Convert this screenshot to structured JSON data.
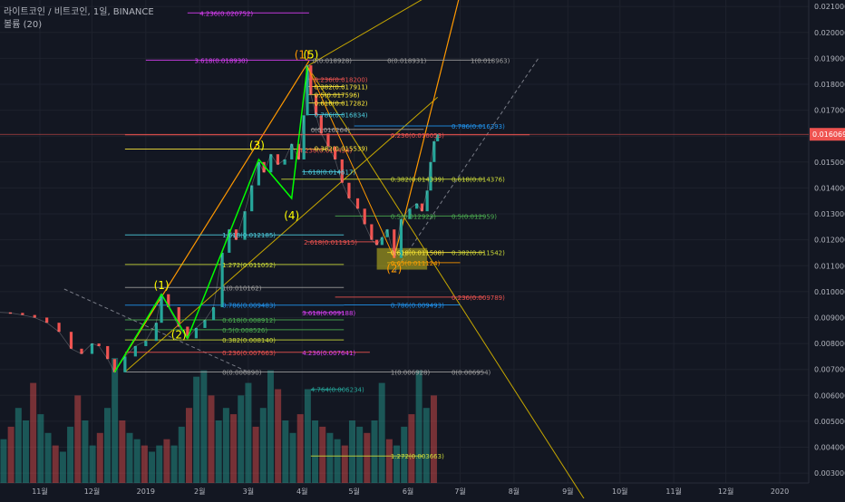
{
  "header": {
    "symbol": "라이트코인 / 비트코인, 1일, BINANCE",
    "indicator": "볼륨 (20)"
  },
  "colors": {
    "bg": "#131722",
    "grid": "#1e222d",
    "up": "#26a69a",
    "down": "#ef5350",
    "axis_text": "#b2b5be",
    "price_badge": "#ef5350",
    "channel": "#ff9800",
    "wave": "#00ff00",
    "sub_wave": "#ffff00",
    "wave_label_main": "#ffff00",
    "wave_label_sub": "#ff9800"
  },
  "chart_data": {
    "type": "candlestick",
    "title": "",
    "xlabel": "",
    "ylabel": "",
    "ylim": [
      0.00262,
      0.02125
    ],
    "grid": true,
    "last_price": "0.016069",
    "y_ticks": [
      "0.021000",
      "0.020000",
      "0.019000",
      "0.018000",
      "0.017000",
      "0.016000",
      "0.015000",
      "0.014000",
      "0.013000",
      "0.012000",
      "0.011000",
      "0.010000",
      "0.009000",
      "0.008000",
      "0.007000",
      "0.006000",
      "0.005000",
      "0.004000",
      "0.003000"
    ],
    "x_ticks": [
      {
        "label": "11월",
        "x": "2018-11-01"
      },
      {
        "label": "12월",
        "x": "2018-12-01"
      },
      {
        "label": "2019",
        "x": "2019-01-01"
      },
      {
        "label": "2월",
        "x": "2019-02-01"
      },
      {
        "label": "3월",
        "x": "2019-03-01"
      },
      {
        "label": "4월",
        "x": "2019-04-01"
      },
      {
        "label": "5월",
        "x": "2019-05-01"
      },
      {
        "label": "6월",
        "x": "2019-06-01"
      },
      {
        "label": "7월",
        "x": "2019-07-01"
      },
      {
        "label": "8월",
        "x": "2019-08-01"
      },
      {
        "label": "9월",
        "x": "2019-09-01"
      },
      {
        "label": "10월",
        "x": "2019-10-01"
      },
      {
        "label": "11월",
        "x": "2019-11-01"
      },
      {
        "label": "12월",
        "x": "2019-12-01"
      },
      {
        "label": "2020",
        "x": "2020-01-01"
      }
    ],
    "price_path": [
      [
        "2018-10-09",
        0.0092
      ],
      [
        "2018-10-15",
        0.00918
      ],
      [
        "2018-10-22",
        0.0091
      ],
      [
        "2018-10-29",
        0.009
      ],
      [
        "2018-11-05",
        0.0088
      ],
      [
        "2018-11-12",
        0.00845
      ],
      [
        "2018-11-19",
        0.0078
      ],
      [
        "2018-11-25",
        0.0076
      ],
      [
        "2018-12-01",
        0.008
      ],
      [
        "2018-12-05",
        0.0079
      ],
      [
        "2018-12-10",
        0.0074
      ],
      [
        "2018-12-14",
        0.00689
      ],
      [
        "2018-12-20",
        0.0075
      ],
      [
        "2018-12-26",
        0.0079
      ],
      [
        "2019-01-01",
        0.0081
      ],
      [
        "2019-01-07",
        0.0088
      ],
      [
        "2019-01-10",
        0.0099
      ],
      [
        "2019-01-14",
        0.0094
      ],
      [
        "2019-01-20",
        0.00865
      ],
      [
        "2019-01-25",
        0.0082
      ],
      [
        "2019-01-30",
        0.0086
      ],
      [
        "2019-02-04",
        0.0089
      ],
      [
        "2019-02-09",
        0.0094
      ],
      [
        "2019-02-14",
        0.0115
      ],
      [
        "2019-02-18",
        0.0124
      ],
      [
        "2019-02-22",
        0.012
      ],
      [
        "2019-02-27",
        0.0131
      ],
      [
        "2019-03-03",
        0.0141
      ],
      [
        "2019-03-07",
        0.015
      ],
      [
        "2019-03-10",
        0.0146
      ],
      [
        "2019-03-14",
        0.0153
      ],
      [
        "2019-03-18",
        0.0149
      ],
      [
        "2019-03-22",
        0.0151
      ],
      [
        "2019-03-26",
        0.0157
      ],
      [
        "2019-03-30",
        0.0151
      ],
      [
        "2019-04-02",
        0.0168
      ],
      [
        "2019-04-04",
        0.01873
      ],
      [
        "2019-04-06",
        0.0176
      ],
      [
        "2019-04-09",
        0.0168
      ],
      [
        "2019-04-12",
        0.0161
      ],
      [
        "2019-04-16",
        0.0156
      ],
      [
        "2019-04-20",
        0.0151
      ],
      [
        "2019-04-24",
        0.0142
      ],
      [
        "2019-04-28",
        0.0136
      ],
      [
        "2019-05-03",
        0.0132
      ],
      [
        "2019-05-07",
        0.0126
      ],
      [
        "2019-05-11",
        0.012
      ],
      [
        "2019-05-14",
        0.0118
      ],
      [
        "2019-05-17",
        0.0121
      ],
      [
        "2019-05-20",
        0.0124
      ],
      [
        "2019-05-24",
        0.0113
      ],
      [
        "2019-05-28",
        0.0128
      ],
      [
        "2019-06-02",
        0.0132
      ],
      [
        "2019-06-06",
        0.0134
      ],
      [
        "2019-06-09",
        0.0131
      ],
      [
        "2019-06-12",
        0.0139
      ],
      [
        "2019-06-14",
        0.015
      ],
      [
        "2019-06-16",
        0.0158
      ],
      [
        "2019-06-18",
        0.01607
      ]
    ],
    "volume": {
      "scale": "relative",
      "values": [
        0.35,
        0.45,
        0.6,
        0.5,
        0.8,
        0.55,
        0.4,
        0.3,
        0.25,
        0.45,
        0.7,
        0.5,
        0.3,
        0.4,
        0.6,
        1.0,
        0.5,
        0.4,
        0.35,
        0.3,
        0.25,
        0.3,
        0.35,
        0.3,
        0.45,
        0.6,
        0.85,
        0.9,
        0.7,
        0.5,
        0.6,
        0.55,
        0.7,
        0.8,
        0.45,
        0.6,
        0.9,
        0.75,
        0.5,
        0.4,
        0.55,
        0.75,
        0.5,
        0.45,
        0.4,
        0.35,
        0.3,
        0.5,
        0.45,
        0.4,
        0.5,
        0.8,
        0.35,
        0.3,
        0.45,
        0.55,
        0.9,
        0.6,
        0.7
      ]
    },
    "fib_labels": [
      {
        "text": "4.236(0.020752)",
        "color": "#e040fb"
      },
      {
        "text": "3.618(0.018930)",
        "color": "#e040fb"
      },
      {
        "text": "0(0.018928)",
        "color": "#9e9e9e"
      },
      {
        "text": "0(0.018931)",
        "color": "#9e9e9e"
      },
      {
        "text": "1(0.018963)",
        "color": "#9e9e9e"
      },
      {
        "text": "0.236(0.018200)",
        "color": "#ef5350"
      },
      {
        "text": "0.382(0.017911)",
        "color": "#ffeb3b"
      },
      {
        "text": "0.5(0.017596)",
        "color": "#ffeb3b"
      },
      {
        "text": "0.618(0.017282)",
        "color": "#ffeb3b"
      },
      {
        "text": "0.786(0.016834)",
        "color": "#4dd0e1"
      },
      {
        "text": "0.786(0.016393)",
        "color": "#2196f3"
      },
      {
        "text": "0(0.016264)",
        "color": "#9e9e9e"
      },
      {
        "text": "0.236(0.016053)",
        "color": "#ef5350"
      },
      {
        "text": "4.236(0.015434)",
        "color": "#ef5350"
      },
      {
        "text": "0.382(0.015539)",
        "color": "#ffeb3b"
      },
      {
        "text": "1.618(0.014617)",
        "color": "#4dd0e1"
      },
      {
        "text": "0.382(0.014339)",
        "color": "#cddc39"
      },
      {
        "text": "0.618(0.014376)",
        "color": "#cddc39"
      },
      {
        "text": "0.5(0.012923)",
        "color": "#4caf50"
      },
      {
        "text": "0.5(0.012959)",
        "color": "#4caf50"
      },
      {
        "text": "1.618(0.012185)",
        "color": "#4dd0e1"
      },
      {
        "text": "2.618(0.011915)",
        "color": "#ef5350"
      },
      {
        "text": "0.618(0.011508)",
        "color": "#ffeb3b"
      },
      {
        "text": "0.382(0.011542)",
        "color": "#cddc39"
      },
      {
        "text": "0.65(0.011124)",
        "color": "#ff9800"
      },
      {
        "text": "1.272(0.011052)",
        "color": "#cddc39"
      },
      {
        "text": "1(0.010162)",
        "color": "#9e9e9e"
      },
      {
        "text": "0.236(0.009789)",
        "color": "#ef5350"
      },
      {
        "text": "0.786(0.009493)",
        "color": "#2196f3"
      },
      {
        "text": "0.786(0.009483)",
        "color": "#2196f3"
      },
      {
        "text": "3.618(0.009188)",
        "color": "#e040fb"
      },
      {
        "text": "0.618(0.008912)",
        "color": "#4caf50"
      },
      {
        "text": "0.5(0.008526)",
        "color": "#4caf50"
      },
      {
        "text": "0.382(0.008140)",
        "color": "#cddc39"
      },
      {
        "text": "0.236(0.007663)",
        "color": "#ef5350"
      },
      {
        "text": "4.236(0.007641)",
        "color": "#e040fb"
      },
      {
        "text": "0(0.006890)",
        "color": "#9e9e9e"
      },
      {
        "text": "1(0.006928)",
        "color": "#9e9e9e"
      },
      {
        "text": "0(0.006954)",
        "color": "#9e9e9e"
      },
      {
        "text": "4.764(0.006234)",
        "color": "#26a69a"
      },
      {
        "text": "1.272(0.003663)",
        "color": "#cddc39"
      }
    ],
    "wave_labels": [
      {
        "text": "(1)",
        "color": "#ffff00",
        "x": "2019-01-10",
        "y": 0.0101
      },
      {
        "text": "(2)",
        "color": "#ffff00",
        "x": "2019-01-20",
        "y": 0.0082
      },
      {
        "text": "(3)",
        "color": "#ffff00",
        "x": "2019-03-06",
        "y": 0.0155
      },
      {
        "text": "(4)",
        "color": "#ffff00",
        "x": "2019-03-26",
        "y": 0.0128
      },
      {
        "text": "(1)",
        "color": "#ff9800",
        "x": "2019-04-01",
        "y": 0.019
      },
      {
        "text": "(5)",
        "color": "#ffff00",
        "x": "2019-04-06",
        "y": 0.019
      },
      {
        "text": "(2)",
        "color": "#ff9800",
        "x": "2019-05-24",
        "y": 0.01075
      }
    ]
  }
}
